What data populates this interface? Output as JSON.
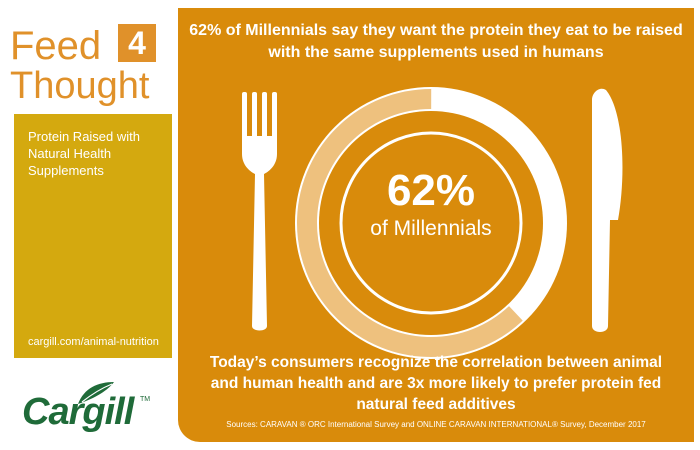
{
  "brand": {
    "line1": "Feed",
    "number": "4",
    "line2": "Thought"
  },
  "sidebar": {
    "topic": "Protein Raised with Natural Health Supplements",
    "url": "cargill.com/animal-nutrition"
  },
  "logo": {
    "name": "Cargill",
    "tm": "TM",
    "icon": "cargill-leaf-icon"
  },
  "main": {
    "headline": "62% of Millennials say they want the protein they eat to be raised with the same supplements used in humans",
    "stat_value": "62%",
    "stat_label": "of Millennials",
    "stat_fraction": 0.62,
    "body": "Today’s consumers recognize the correlation between animal and human health and are 3x more likely to prefer protein fed natural feed additives",
    "sources": "Sources: CARAVAN ® ORC International Survey and ONLINE CARAVAN INTERNATIONAL® Survey, December 2017"
  },
  "colors": {
    "panel": "#d98b0b",
    "accent": "#e0912a",
    "yellow": "#d4a90f",
    "ring_light": "#eec17e",
    "logo_green": "#1f6b39",
    "white": "#ffffff"
  },
  "icons": [
    "fork-icon",
    "plate-icon",
    "knife-icon",
    "cargill-leaf-icon"
  ]
}
